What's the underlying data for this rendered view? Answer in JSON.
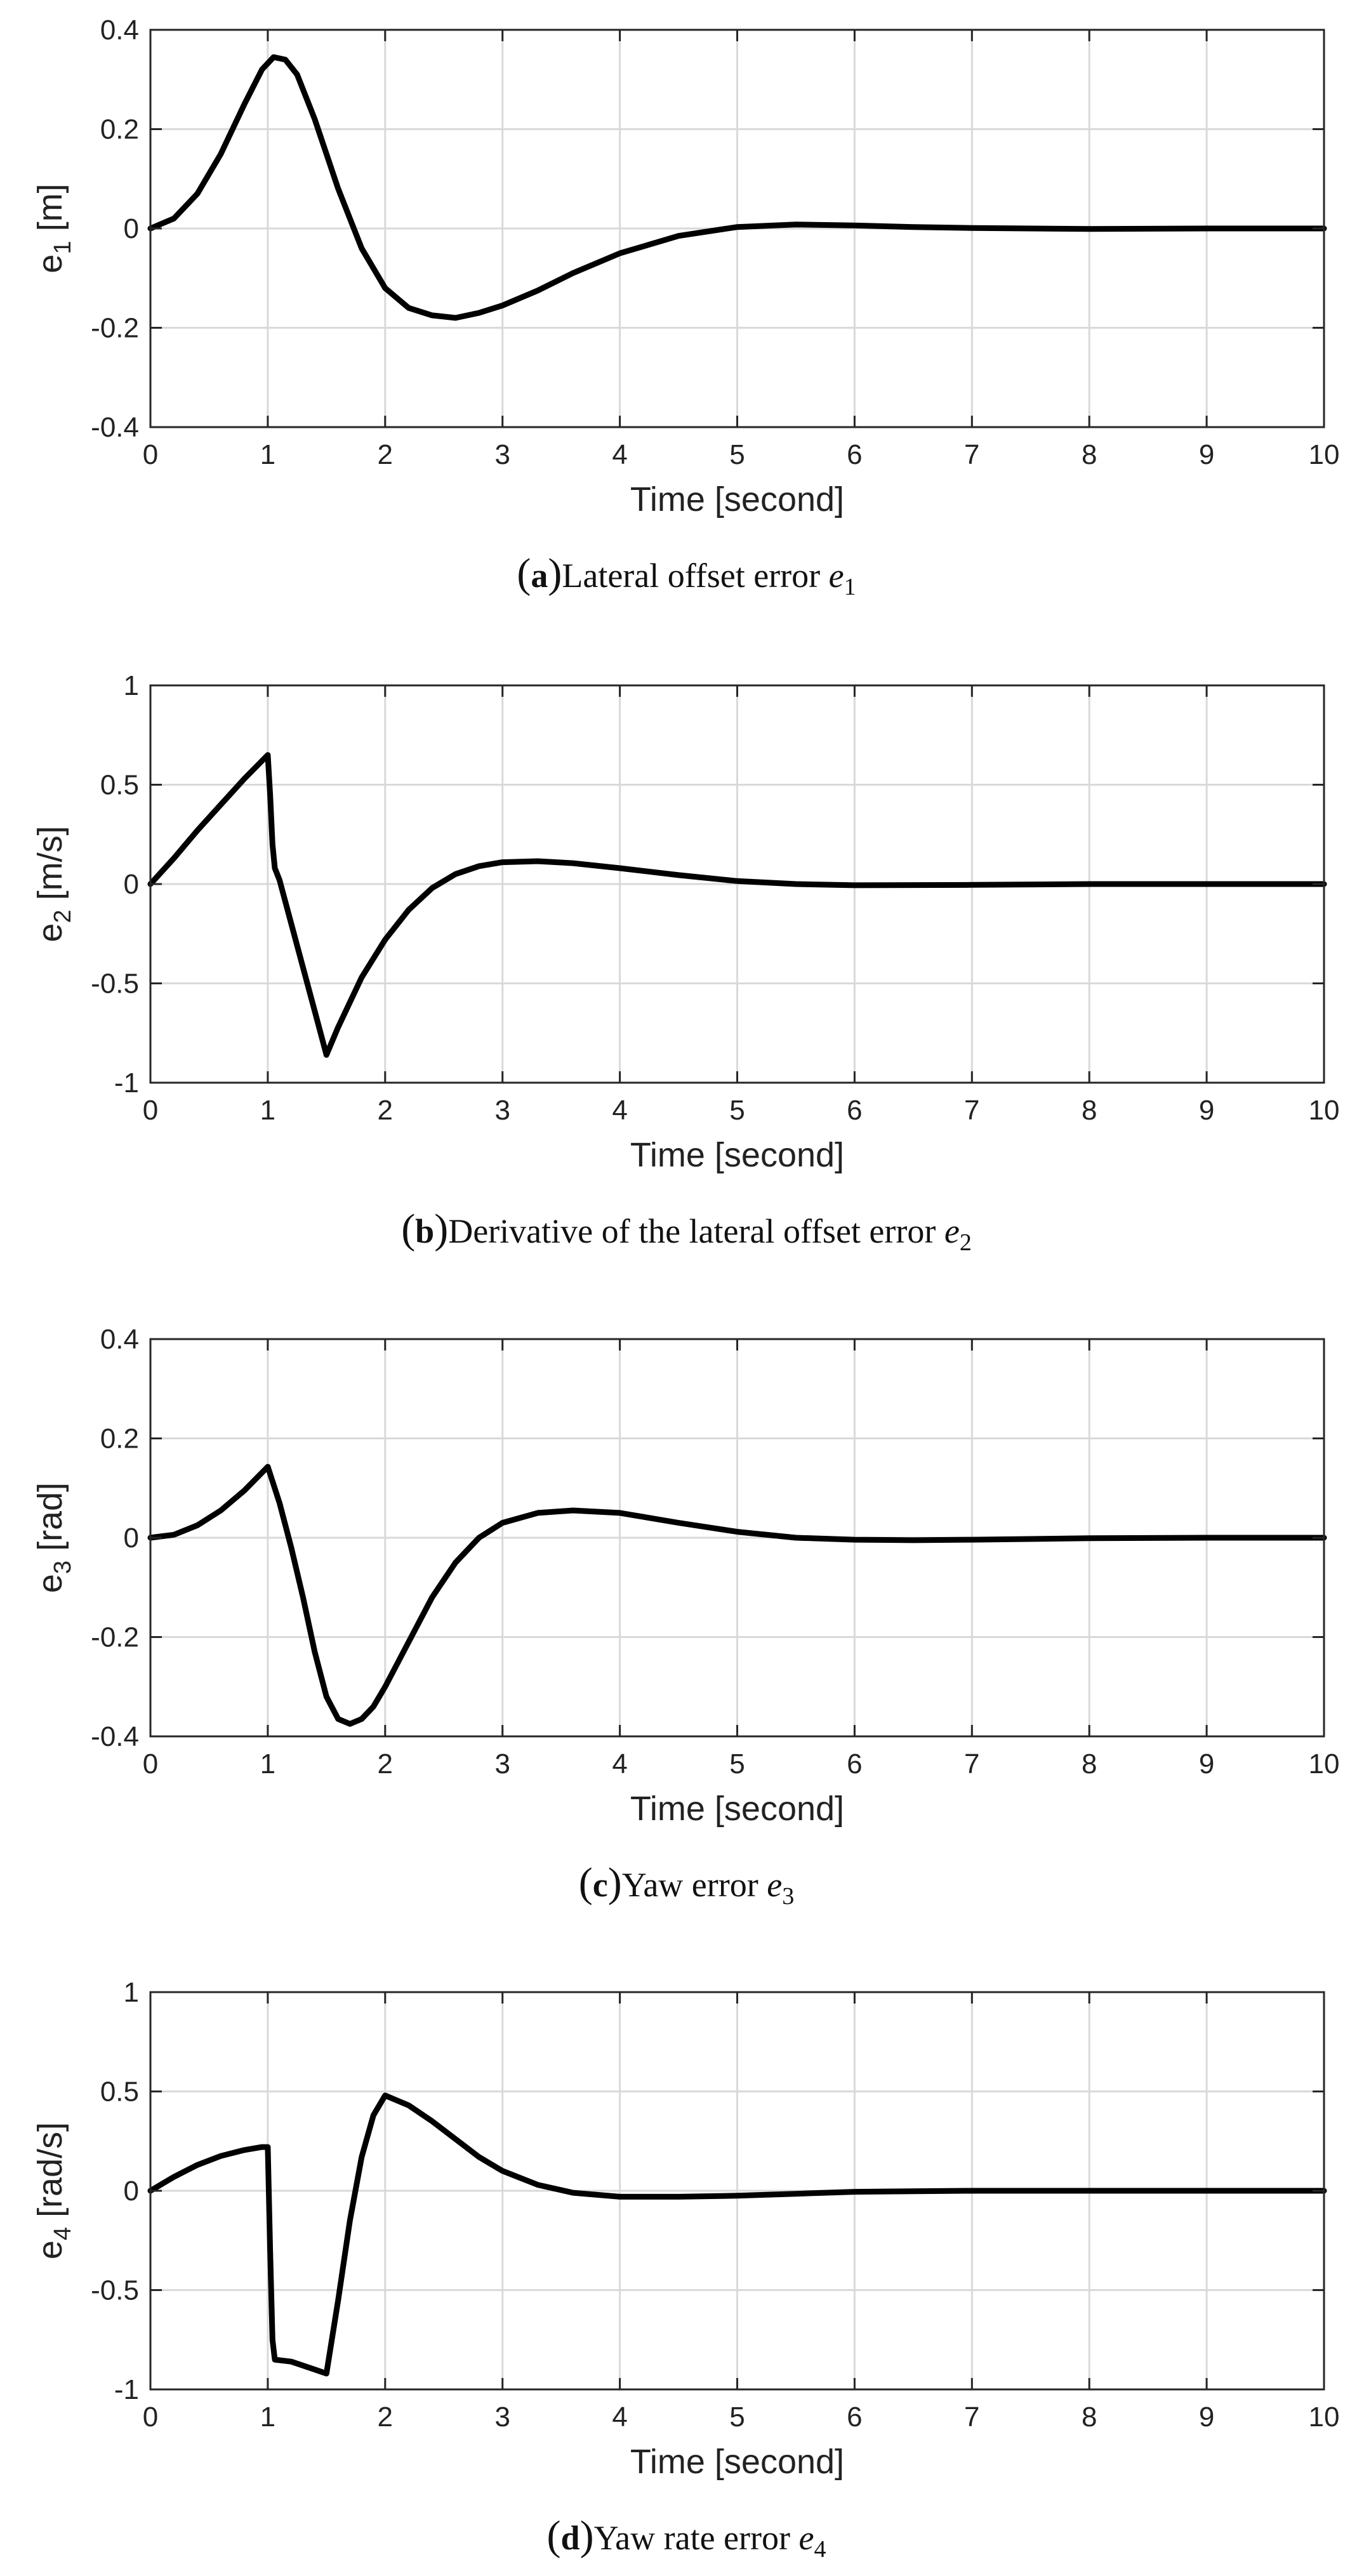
{
  "figure": {
    "background": "#ffffff",
    "line_color": "#000000",
    "grid_color": "#d9d9d9"
  },
  "chart_data": [
    {
      "id": "a",
      "type": "line",
      "title": "",
      "caption": {
        "letter": "a",
        "text": "Lateral offset error",
        "math": "e",
        "sub": "1"
      },
      "xlabel": "Time [second]",
      "ylabel": {
        "base": "e",
        "sub": "1",
        "unit": " [m]"
      },
      "xlim": [
        0,
        10
      ],
      "ylim": [
        -0.4,
        0.4
      ],
      "grid": true,
      "xticks": [
        0,
        1,
        2,
        3,
        4,
        5,
        6,
        7,
        8,
        9,
        10
      ],
      "xtick_labels": [
        "0",
        "1",
        "2",
        "3",
        "4",
        "5",
        "6",
        "7",
        "8",
        "9",
        "10"
      ],
      "yticks": [
        -0.4,
        -0.2,
        0,
        0.2,
        0.4
      ],
      "ytick_labels": [
        "-0.4",
        "-0.2",
        "0",
        "0.2",
        "0.4"
      ],
      "series": [
        {
          "name": "e1",
          "x": [
            0,
            0.2,
            0.4,
            0.6,
            0.8,
            0.95,
            1.05,
            1.15,
            1.25,
            1.4,
            1.6,
            1.8,
            2.0,
            2.2,
            2.4,
            2.6,
            2.8,
            3.0,
            3.3,
            3.6,
            4.0,
            4.5,
            5.0,
            5.5,
            6.0,
            6.5,
            7.0,
            8.0,
            9.0,
            10.0
          ],
          "y": [
            0,
            0.02,
            0.07,
            0.15,
            0.25,
            0.32,
            0.345,
            0.34,
            0.31,
            0.22,
            0.08,
            -0.04,
            -0.12,
            -0.16,
            -0.175,
            -0.18,
            -0.17,
            -0.155,
            -0.125,
            -0.09,
            -0.05,
            -0.015,
            0.003,
            0.008,
            0.006,
            0.003,
            0.001,
            -0.001,
            0,
            0
          ]
        }
      ]
    },
    {
      "id": "b",
      "type": "line",
      "title": "",
      "caption": {
        "letter": "b",
        "text": "Derivative of the lateral offset error",
        "math": "e",
        "sub": "2"
      },
      "xlabel": "Time [second]",
      "ylabel": {
        "base": "e",
        "sub": "2",
        "unit": " [m/s]"
      },
      "xlim": [
        0,
        10
      ],
      "ylim": [
        -1,
        1
      ],
      "grid": true,
      "xticks": [
        0,
        1,
        2,
        3,
        4,
        5,
        6,
        7,
        8,
        9,
        10
      ],
      "xtick_labels": [
        "0",
        "1",
        "2",
        "3",
        "4",
        "5",
        "6",
        "7",
        "8",
        "9",
        "10"
      ],
      "yticks": [
        -1,
        -0.5,
        0,
        0.5,
        1
      ],
      "ytick_labels": [
        "-1",
        "-0.5",
        "0",
        "0.5",
        "1"
      ],
      "series": [
        {
          "name": "e2",
          "x": [
            0,
            0.2,
            0.4,
            0.6,
            0.8,
            1.0,
            1.02,
            1.04,
            1.06,
            1.1,
            1.2,
            1.3,
            1.4,
            1.5,
            1.6,
            1.8,
            2.0,
            2.2,
            2.4,
            2.6,
            2.8,
            3.0,
            3.3,
            3.6,
            4.0,
            4.5,
            5.0,
            5.5,
            6.0,
            7.0,
            8.0,
            9.0,
            10.0
          ],
          "y": [
            0,
            0.13,
            0.27,
            0.4,
            0.53,
            0.65,
            0.45,
            0.2,
            0.08,
            0.02,
            -0.2,
            -0.42,
            -0.64,
            -0.86,
            -0.72,
            -0.47,
            -0.28,
            -0.13,
            -0.02,
            0.05,
            0.09,
            0.11,
            0.115,
            0.105,
            0.08,
            0.045,
            0.015,
            0.0,
            -0.006,
            -0.004,
            0.0,
            0.0,
            0.0
          ]
        }
      ]
    },
    {
      "id": "c",
      "type": "line",
      "title": "",
      "caption": {
        "letter": "c",
        "text": "Yaw error",
        "math": "e",
        "sub": "3"
      },
      "xlabel": "Time [second]",
      "ylabel": {
        "base": "e",
        "sub": "3",
        "unit": " [rad]"
      },
      "xlim": [
        0,
        10
      ],
      "ylim": [
        -0.4,
        0.4
      ],
      "grid": true,
      "xticks": [
        0,
        1,
        2,
        3,
        4,
        5,
        6,
        7,
        8,
        9,
        10
      ],
      "xtick_labels": [
        "0",
        "1",
        "2",
        "3",
        "4",
        "5",
        "6",
        "7",
        "8",
        "9",
        "10"
      ],
      "yticks": [
        -0.4,
        -0.2,
        0,
        0.2,
        0.4
      ],
      "ytick_labels": [
        "-0.4",
        "-0.2",
        "0",
        "0.2",
        "0.4"
      ],
      "series": [
        {
          "name": "e3",
          "x": [
            0,
            0.2,
            0.4,
            0.6,
            0.8,
            1.0,
            1.1,
            1.2,
            1.3,
            1.4,
            1.5,
            1.6,
            1.7,
            1.8,
            1.9,
            2.0,
            2.2,
            2.4,
            2.6,
            2.8,
            3.0,
            3.3,
            3.6,
            4.0,
            4.5,
            5.0,
            5.5,
            6.0,
            6.5,
            7.0,
            8.0,
            9.0,
            10.0
          ],
          "y": [
            0,
            0.006,
            0.025,
            0.055,
            0.095,
            0.143,
            0.07,
            -0.02,
            -0.12,
            -0.23,
            -0.32,
            -0.365,
            -0.375,
            -0.365,
            -0.34,
            -0.3,
            -0.21,
            -0.12,
            -0.05,
            0.0,
            0.03,
            0.05,
            0.055,
            0.05,
            0.03,
            0.012,
            0.0,
            -0.004,
            -0.005,
            -0.004,
            -0.001,
            0.0,
            0.0
          ]
        }
      ]
    },
    {
      "id": "d",
      "type": "line",
      "title": "",
      "caption": {
        "letter": "d",
        "text": "Yaw rate error",
        "math": "e",
        "sub": "4"
      },
      "xlabel": "Time [second]",
      "ylabel": {
        "base": "e",
        "sub": "4",
        "unit": " [rad/s]"
      },
      "xlim": [
        0,
        10
      ],
      "ylim": [
        -1,
        1
      ],
      "grid": true,
      "xticks": [
        0,
        1,
        2,
        3,
        4,
        5,
        6,
        7,
        8,
        9,
        10
      ],
      "xtick_labels": [
        "0",
        "1",
        "2",
        "3",
        "4",
        "5",
        "6",
        "7",
        "8",
        "9",
        "10"
      ],
      "yticks": [
        -1,
        -0.5,
        0,
        0.5,
        1
      ],
      "ytick_labels": [
        "-1",
        "-0.5",
        "0",
        "0.5",
        "1"
      ],
      "series": [
        {
          "name": "e4",
          "x": [
            0,
            0.2,
            0.4,
            0.6,
            0.8,
            0.95,
            1.0,
            1.02,
            1.04,
            1.06,
            1.2,
            1.4,
            1.5,
            1.6,
            1.7,
            1.8,
            1.9,
            2.0,
            2.2,
            2.4,
            2.6,
            2.8,
            3.0,
            3.3,
            3.6,
            4.0,
            4.5,
            5.0,
            5.5,
            6.0,
            7.0,
            8.0,
            9.0,
            10.0
          ],
          "y": [
            0,
            0.07,
            0.13,
            0.175,
            0.205,
            0.22,
            0.22,
            -0.3,
            -0.75,
            -0.85,
            -0.86,
            -0.9,
            -0.92,
            -0.55,
            -0.15,
            0.17,
            0.38,
            0.48,
            0.43,
            0.35,
            0.26,
            0.17,
            0.1,
            0.03,
            -0.01,
            -0.03,
            -0.03,
            -0.025,
            -0.015,
            -0.005,
            0.0,
            0.0,
            0.0,
            0.0
          ]
        }
      ]
    }
  ]
}
